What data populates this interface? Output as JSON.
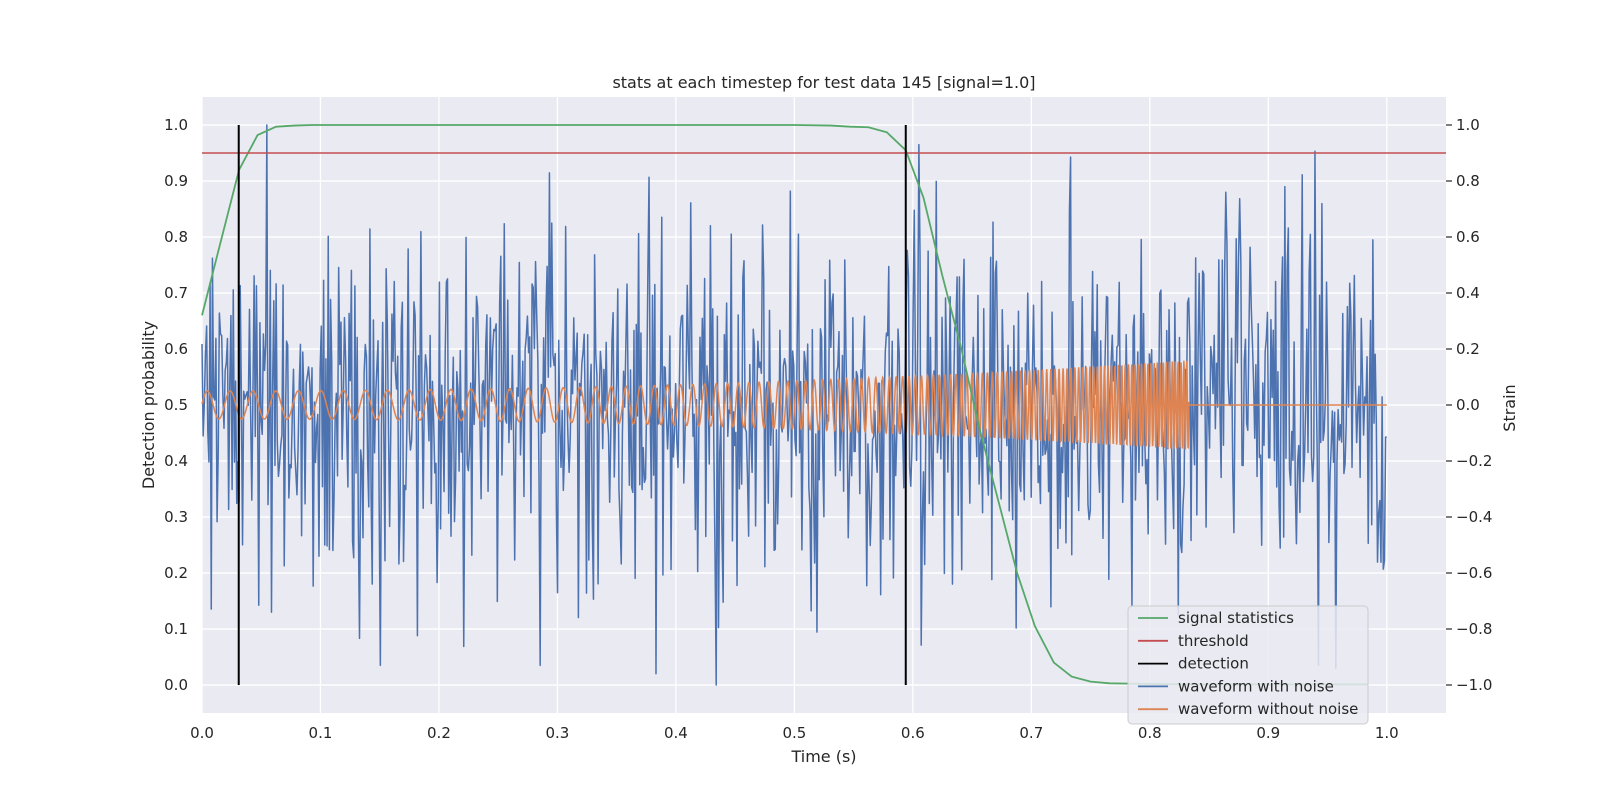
{
  "chart_data": {
    "type": "line",
    "title": "stats at each timestep for test data 145 [signal=1.0]",
    "xlabel": "Time (s)",
    "ylabel": "Detection probability",
    "y2label": "Strain",
    "xlim": [
      0.0,
      1.05
    ],
    "ylim": [
      -0.05,
      1.05
    ],
    "y2lim": [
      -1.1,
      1.1
    ],
    "xticks": [
      "0.0",
      "0.1",
      "0.2",
      "0.3",
      "0.4",
      "0.5",
      "0.6",
      "0.7",
      "0.8",
      "0.9",
      "1.0"
    ],
    "yticks": [
      "0.0",
      "0.1",
      "0.2",
      "0.3",
      "0.4",
      "0.5",
      "0.6",
      "0.7",
      "0.8",
      "0.9",
      "1.0"
    ],
    "y2ticks": [
      "−1.0",
      "−0.8",
      "−0.6",
      "−0.4",
      "−0.2",
      "0.0",
      "0.2",
      "0.4",
      "0.6",
      "0.8",
      "1.0"
    ],
    "grid": true,
    "legend_position": "lower-right",
    "series": [
      {
        "name": "signal statistics",
        "axis": "left",
        "color": "#55a868",
        "x": [
          0.0,
          0.0156,
          0.0313,
          0.0469,
          0.0625,
          0.0781,
          0.0938,
          0.125,
          0.25,
          0.375,
          0.5,
          0.531,
          0.547,
          0.5625,
          0.578,
          0.594,
          0.609,
          0.625,
          0.641,
          0.656,
          0.672,
          0.688,
          0.703,
          0.719,
          0.734,
          0.75,
          0.766,
          0.797,
          0.828,
          0.859,
          0.891,
          0.922,
          0.953,
          0.984
        ],
        "y": [
          0.66,
          0.79,
          0.92,
          0.982,
          0.997,
          0.999,
          1.0,
          1.0,
          1.0,
          1.0,
          1.0,
          0.999,
          0.997,
          0.996,
          0.987,
          0.955,
          0.87,
          0.73,
          0.6,
          0.46,
          0.33,
          0.2,
          0.105,
          0.04,
          0.015,
          0.006,
          0.003,
          0.002,
          0.001,
          0.001,
          0.001,
          0.001,
          0.001,
          0.001
        ]
      },
      {
        "name": "threshold",
        "axis": "left",
        "color": "#c44e52",
        "x": [
          0.0,
          1.05
        ],
        "y": [
          0.95,
          0.95
        ]
      },
      {
        "name": "detection",
        "axis": "left",
        "color": "#000000",
        "segments": [
          [
            0.031,
            0.0,
            0.031,
            1.0
          ],
          [
            0.594,
            0.0,
            0.594,
            1.0
          ]
        ]
      },
      {
        "name": "waveform with noise",
        "axis": "right",
        "color": "#4c72b0",
        "x_range": [
          0.0,
          1.0
        ],
        "noise_amplitude": 0.55,
        "extremes": [
          [
            0.0547,
            1.0
          ],
          [
            0.0586,
            -0.74
          ],
          [
            0.4336,
            -1.0
          ],
          [
            0.3828,
            -0.96
          ],
          [
            0.957,
            -0.94
          ],
          [
            0.9141,
            0.78
          ]
        ]
      },
      {
        "name": "waveform without noise",
        "axis": "right",
        "color": "#dd8452",
        "x_range": [
          0.0,
          1.0
        ],
        "chirp_start_frequency_hz": 52,
        "chirp_end_frequency_hz": 420,
        "start_amplitude": 0.05,
        "peak_amplitude": 0.16,
        "merger_time": 0.833,
        "post_merger_value": 0.0
      }
    ]
  }
}
